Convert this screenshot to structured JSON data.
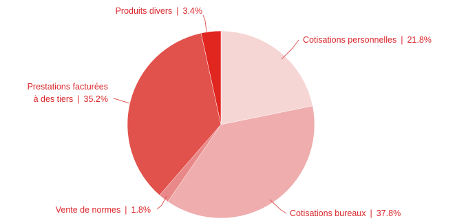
{
  "chart_data": {
    "type": "pie",
    "start_angle_deg": 0,
    "direction": "clockwise",
    "slices": [
      {
        "key": "cotisations-personnelles",
        "label": "Cotisations personnelles",
        "value": 21.8,
        "value_text": "21.8%",
        "color": "#f6d6d4"
      },
      {
        "key": "cotisations-bureaux",
        "label": "Cotisations bureaux",
        "value": 37.8,
        "value_text": "37.8%",
        "color": "#efadad"
      },
      {
        "key": "vente-de-normes",
        "label": "Vente de normes",
        "value": 1.8,
        "value_text": "1.8%",
        "color": "#e98888"
      },
      {
        "key": "prestations-facturees",
        "label_lines": [
          "Prestations facturées",
          "à des tiers"
        ],
        "value": 35.2,
        "value_text": "35.2%",
        "color": "#e2524d"
      },
      {
        "key": "produits-divers",
        "label": "Produits divers",
        "value": 3.4,
        "value_text": "3.4%",
        "color": "#e0261f"
      }
    ],
    "label_color": "#d9262b",
    "separator": "|"
  }
}
